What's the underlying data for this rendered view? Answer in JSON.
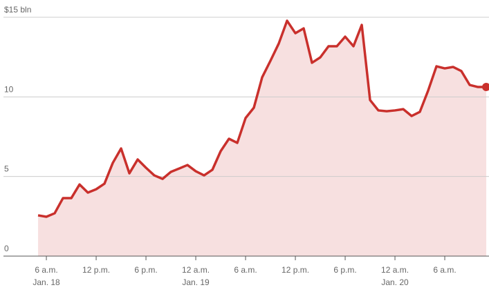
{
  "chart_data": {
    "type": "area",
    "x": [
      5,
      6,
      7,
      8,
      9,
      10,
      11,
      12,
      13,
      14,
      15,
      16,
      17,
      18,
      19,
      20,
      21,
      22,
      23,
      24,
      25,
      26,
      27,
      28,
      29,
      30,
      31,
      32,
      33,
      34,
      35,
      36,
      37,
      38,
      39,
      40,
      41,
      42,
      43,
      44,
      45,
      46,
      47,
      48,
      49,
      50,
      51,
      52,
      53,
      54,
      55,
      56,
      57,
      58,
      59
    ],
    "series": [
      {
        "color": "#c9302c",
        "fill": "#f7e0e0",
        "values": [
          2.56,
          2.47,
          2.69,
          3.64,
          3.64,
          4.5,
          3.99,
          4.2,
          4.55,
          5.85,
          6.76,
          5.2,
          6.07,
          5.55,
          5.07,
          4.85,
          5.29,
          5.5,
          5.72,
          5.33,
          5.07,
          5.42,
          6.59,
          7.37,
          7.11,
          8.67,
          9.32,
          11.23,
          12.27,
          13.35,
          14.78,
          14.0,
          14.3,
          12.14,
          12.48,
          13.18,
          13.18,
          13.78,
          13.18,
          14.52,
          9.8,
          9.15,
          9.1,
          9.15,
          9.23,
          8.8,
          9.06,
          10.4,
          11.92,
          11.79,
          11.88,
          11.62,
          10.75,
          10.62,
          10.62
        ]
      }
    ],
    "xlim": [
      0.83,
      59.33
    ],
    "ylim": [
      0,
      15
    ],
    "yticks": [
      0,
      5,
      10,
      {
        "value": 15,
        "label": "$15 bln"
      }
    ],
    "xticks": [
      {
        "value": 6,
        "label": "6 a.m."
      },
      {
        "value": 12,
        "label": "12 p.m."
      },
      {
        "value": 18,
        "label": "6 p.m."
      },
      {
        "value": 24,
        "label": "12 a.m."
      },
      {
        "value": 30,
        "label": "6 a.m."
      },
      {
        "value": 36,
        "label": "12 p.m."
      },
      {
        "value": 42,
        "label": "6 p.m."
      },
      {
        "value": 48,
        "label": "12 a.m."
      },
      {
        "value": 54,
        "label": "6 a.m."
      }
    ],
    "x_date_labels": [
      {
        "value": 6,
        "label": "Jan. 18"
      },
      {
        "value": 24,
        "label": "Jan. 19"
      },
      {
        "value": 48,
        "label": "Jan. 20"
      }
    ],
    "grid": true
  }
}
